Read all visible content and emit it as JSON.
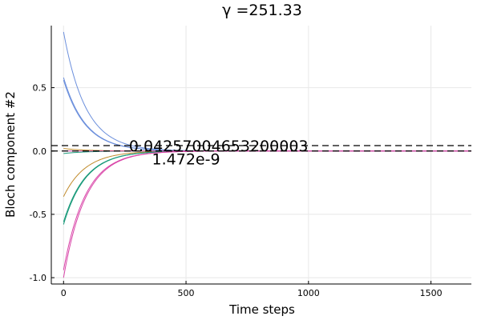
{
  "chart_data": {
    "type": "line",
    "title": "γ =251.33",
    "xlabel": "Time steps",
    "ylabel": "Bloch component #2",
    "xlim": [
      -50,
      1665
    ],
    "ylim": [
      -1.05,
      0.99
    ],
    "x_ticks": [
      0,
      500,
      1000,
      1500
    ],
    "x_tick_labels": [
      "0",
      "500",
      "1000",
      "1500"
    ],
    "y_ticks": [
      -1.0,
      -0.5,
      0.0,
      0.5
    ],
    "y_tick_labels": [
      "-1.0",
      "-0.5",
      "0.0",
      "0.5"
    ],
    "grid": true,
    "legend": "none",
    "decay_time_steps": 90,
    "series": [
      {
        "color": "#6b8fdc",
        "start": 0.94,
        "end": 0.0
      },
      {
        "color": "#6b8fdc",
        "start": 0.58,
        "end": 0.0
      },
      {
        "color": "#6b8fdc",
        "start": 0.56,
        "end": 0.0
      },
      {
        "color": "#c08a2a",
        "start": -0.36,
        "end": 0.0
      },
      {
        "color": "#c08a2a",
        "start": 0.02,
        "end": 0.0
      },
      {
        "color": "#1a9a7a",
        "start": -0.58,
        "end": 0.0
      },
      {
        "color": "#1a9a7a",
        "start": -0.56,
        "end": 0.0
      },
      {
        "color": "#1a9a7a",
        "start": -0.02,
        "end": 0.0
      },
      {
        "color": "#d945a8",
        "start": -0.94,
        "end": 0.0
      },
      {
        "color": "#d945a8",
        "start": -1.0,
        "end": 0.0
      },
      {
        "color": "#d945a8",
        "start": 0.0,
        "end": 0.0
      }
    ],
    "reference_lines": [
      {
        "y": 0.04257004653200003,
        "style": "dashed",
        "color": "#000000"
      },
      {
        "y": 1.472e-09,
        "style": "dashed",
        "color": "#000000"
      }
    ],
    "annotations": [
      {
        "text": "0.04257004653200003",
        "x": 633,
        "y": 0.04257004653200003
      },
      {
        "text": "1.472e-9",
        "x": 500,
        "y": -0.06
      }
    ]
  }
}
